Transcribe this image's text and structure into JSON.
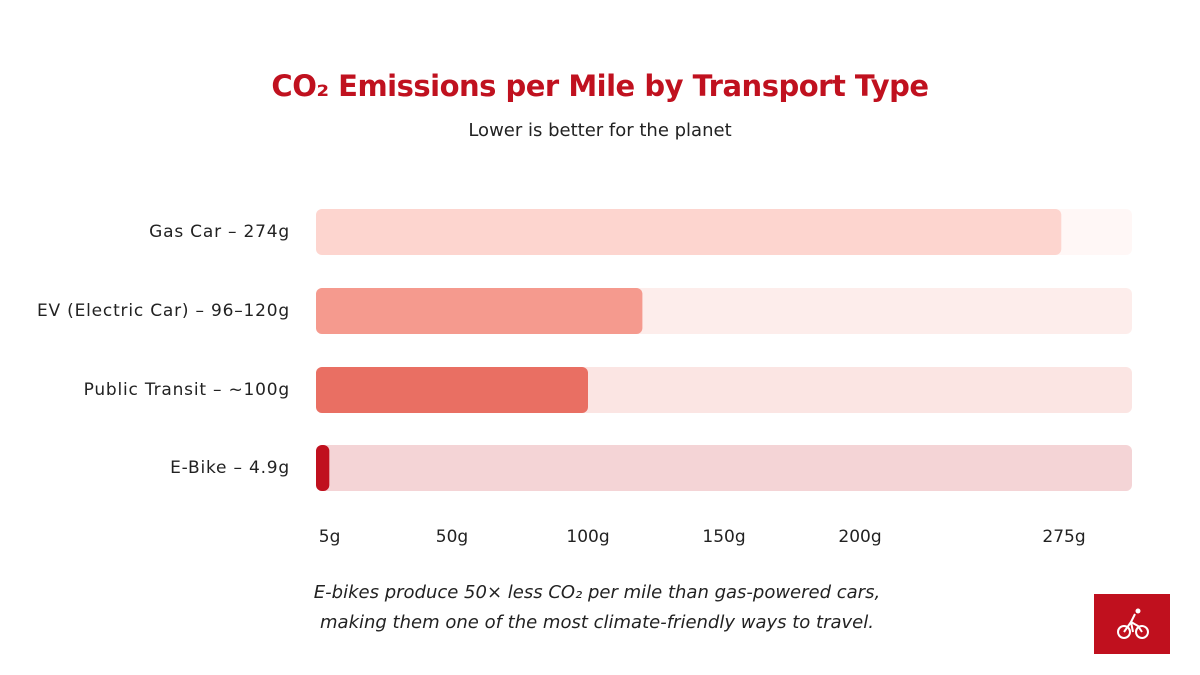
{
  "chart_data": {
    "type": "bar",
    "orientation": "horizontal",
    "title": "CO₂ Emissions per Mile by Transport Type",
    "subtitle": "Lower is better for the planet",
    "categories": [
      "Gas Car – 274g",
      "EV (Electric Car) – 96–120g",
      "Public Transit – ~100g",
      "E-Bike – 4.9g"
    ],
    "values": [
      274,
      120,
      100,
      4.9
    ],
    "colors": [
      "#fdd5cf",
      "#f59a8e",
      "#e96f63",
      "#c0101e"
    ],
    "xlim": [
      0,
      300
    ],
    "xticks": [
      {
        "value": 5,
        "label": "5g"
      },
      {
        "value": 50,
        "label": "50g"
      },
      {
        "value": 100,
        "label": "100g"
      },
      {
        "value": 150,
        "label": "150g"
      },
      {
        "value": 200,
        "label": "200g"
      },
      {
        "value": 275,
        "label": "275g"
      }
    ],
    "annotation": [
      "E-bikes produce 50× less CO₂ per mile than gas-powered cars,",
      "making them one of the most climate-friendly ways to travel."
    ]
  }
}
